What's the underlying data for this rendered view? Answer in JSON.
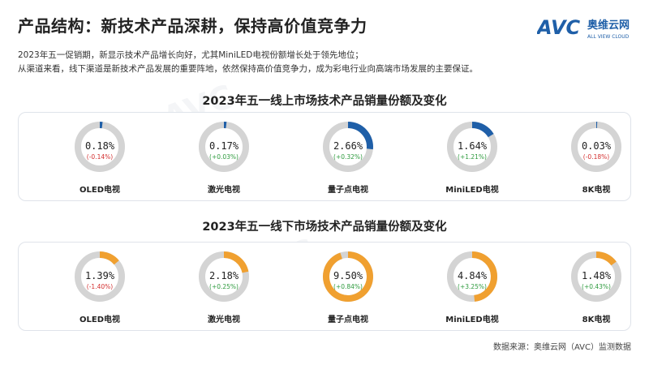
{
  "header": {
    "title": "产品结构：新技术产品深耕，保持高价值竞争力",
    "logo_text": "AVC",
    "logo_cn": "奥维云网",
    "logo_en": "ALL VIEW CLOUD"
  },
  "intro": {
    "line1": "2023年五一促销期，新显示技术产品增长向好，尤其MiniLED电视份额增长处于领先地位；",
    "line2": "从渠道来看，线下渠道是新技术产品发展的重要阵地，依然保持高价值竞争力，成为彩电行业向高端市场发展的主要保证。"
  },
  "colors": {
    "online": "#1f5fa8",
    "offline": "#f0a030",
    "track": "#d4d4d4",
    "positive": "#2e9b3e",
    "negative": "#d32f2f"
  },
  "chart_data": [
    {
      "type": "pie",
      "title": "2023年五一线上市场技术产品销量份额及变化",
      "categories": [
        "OLED电视",
        "激光电视",
        "量子点电视",
        "MiniLED电视",
        "8K电视"
      ],
      "values": [
        0.18,
        0.17,
        2.66,
        1.64,
        0.03
      ],
      "labels": [
        "0.18%",
        "0.17%",
        "2.66%",
        "1.64%",
        "0.03%"
      ],
      "changes": [
        "(-0.14%)",
        "(+0.03%)",
        "(+0.32%)",
        "(+1.21%)",
        "(-0.18%)"
      ],
      "unit": "%"
    },
    {
      "type": "pie",
      "title": "2023年五一线下市场技术产品销量份额及变化",
      "categories": [
        "OLED电视",
        "激光电视",
        "量子点电视",
        "MiniLED电视",
        "8K电视"
      ],
      "values": [
        1.39,
        2.18,
        9.5,
        4.84,
        1.48
      ],
      "labels": [
        "1.39%",
        "2.18%",
        "9.50%",
        "4.84%",
        "1.48%"
      ],
      "changes": [
        "(-1.40%)",
        "(+0.25%)",
        "(+0.84%)",
        "(+3.25%)",
        "(+0.43%)"
      ],
      "unit": "%"
    }
  ],
  "source": "数据来源：奥维云网（AVC）监测数据"
}
